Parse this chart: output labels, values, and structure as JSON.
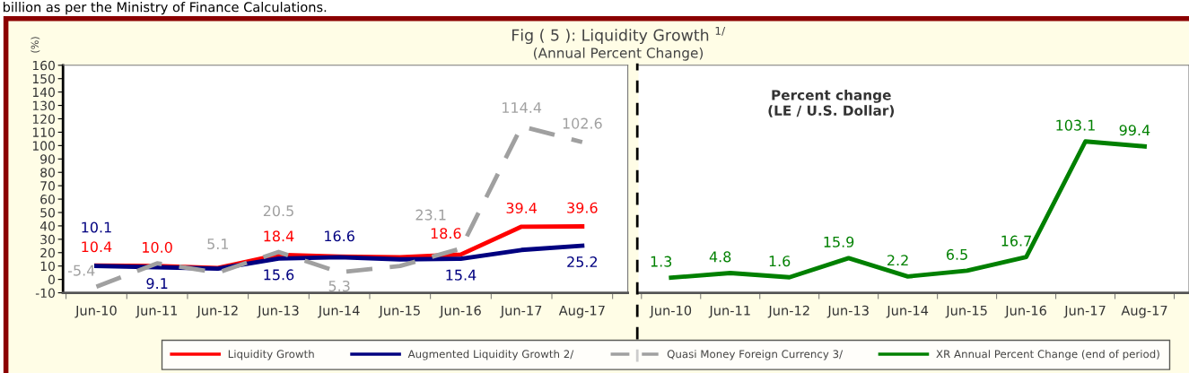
{
  "chart_data": [
    {
      "type": "line",
      "title": "Fig ( 5 ): Liquidity Growth $^{1/}$",
      "subtitle": "(Annual Percent Change)",
      "ylabel": "(%)",
      "annotations": [
        "billion as per the Ministry of Finance Calculations."
      ],
      "categories": [
        "Jun-10",
        "Jun-11",
        "Jun-12",
        "Jun-13",
        "Jun-14",
        "Jun-15",
        "Jun-16",
        "Jun-17",
        "Aug-17"
      ],
      "series": [
        {
          "name": "Liquidity Growth",
          "color": "#ff0000",
          "line_style": "solid",
          "values": [
            10.4,
            10.0,
            8.5,
            18.4,
            17,
            16.5,
            18.6,
            39.4,
            39.6
          ],
          "value_labels": [
            "10.4",
            "10.0",
            null,
            "18.4",
            null,
            null,
            "18.6",
            "39.4",
            "39.6"
          ]
        },
        {
          "name": "Augmented Liquidity Growth 2/",
          "color": "#000080",
          "line_style": "solid",
          "values": [
            10.1,
            9.1,
            8,
            15.6,
            16.6,
            15,
            15.4,
            22,
            25.2
          ],
          "value_labels": [
            "10.1",
            "9.1",
            null,
            "15.6",
            "16.6",
            null,
            "15.4",
            null,
            "25.2"
          ]
        },
        {
          "name": "Quasi Money Foreign Currency 3/",
          "color": "#a0a0a0",
          "line_style": "dashed",
          "values": [
            -5.4,
            12,
            5.1,
            20.5,
            5.3,
            10,
            23.1,
            114.4,
            102.6
          ],
          "value_labels": [
            "-5.4",
            null,
            "5.1",
            "20.5",
            "5.3",
            null,
            "23.1",
            "114.4",
            "102.6"
          ]
        }
      ],
      "ylim": [
        -10,
        160
      ],
      "yticks": [
        -10,
        0,
        10,
        20,
        30,
        40,
        50,
        60,
        70,
        80,
        90,
        100,
        110,
        120,
        130,
        140,
        150,
        160
      ],
      "grid": false,
      "legend": "bottom",
      "marker": "none"
    },
    {
      "type": "line",
      "annotations": [
        "Percent change\n(LE / U.S. Dollar)"
      ],
      "categories": [
        "Jun-10",
        "Jun-11",
        "Jun-12",
        "Jun-13",
        "Jun-14",
        "Jun-15",
        "Jun-16",
        "Jun-17",
        "Aug-17"
      ],
      "series": [
        {
          "name": "XR Annual Percent Change (end of period)",
          "color": "#008000",
          "line_style": "solid",
          "values": [
            1.3,
            4.8,
            1.6,
            15.9,
            2.2,
            6.5,
            16.7,
            103.1,
            99.4
          ],
          "data_labels": true
        }
      ],
      "ylim": [
        -10,
        160
      ],
      "tick_labels": "x",
      "grid": false,
      "legend": "bottom",
      "marker": "none"
    }
  ]
}
